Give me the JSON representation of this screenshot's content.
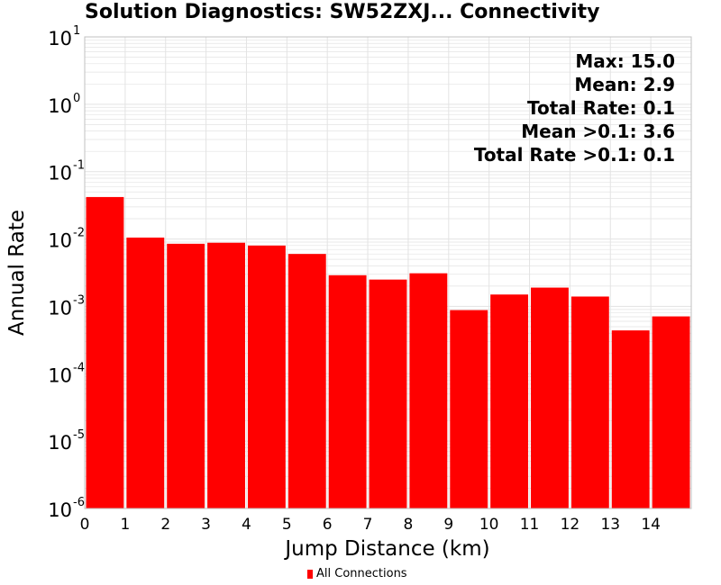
{
  "colors": {
    "bar": "#ff0000",
    "background": "#ffffff",
    "plot_border": "#c0c0c0",
    "grid": "#e3e3e3"
  },
  "chart_data": {
    "type": "bar",
    "title": "Solution Diagnostics: SW52ZXJ... Connectivity",
    "xlabel": "Jump Distance (km)",
    "ylabel": "Annual Rate",
    "y_scale": "log",
    "ylim": [
      1e-06,
      10
    ],
    "xlim": [
      0,
      15
    ],
    "x_tick_labels": [
      "0",
      "1",
      "2",
      "3",
      "4",
      "5",
      "6",
      "7",
      "8",
      "9",
      "10",
      "11",
      "12",
      "13",
      "14"
    ],
    "y_tick_labels": [
      {
        "base": "10",
        "exp": "1",
        "value": 10
      },
      {
        "base": "10",
        "exp": "0",
        "value": 1
      },
      {
        "base": "10",
        "exp": "-1",
        "value": 0.1
      },
      {
        "base": "10",
        "exp": "-2",
        "value": 0.01
      },
      {
        "base": "10",
        "exp": "-3",
        "value": 0.001
      },
      {
        "base": "10",
        "exp": "-4",
        "value": 0.0001
      },
      {
        "base": "10",
        "exp": "-5",
        "value": 1e-05
      },
      {
        "base": "10",
        "exp": "-6",
        "value": 1e-06
      }
    ],
    "grid": true,
    "legend_position": "bottom",
    "series": [
      {
        "name": "All Connections",
        "color": "#ff0000",
        "bins": [
          {
            "x0": 0,
            "x1": 1,
            "value": 0.042
          },
          {
            "x0": 1,
            "x1": 2,
            "value": 0.0105
          },
          {
            "x0": 2,
            "x1": 3,
            "value": 0.0085
          },
          {
            "x0": 3,
            "x1": 4,
            "value": 0.0088
          },
          {
            "x0": 4,
            "x1": 5,
            "value": 0.008
          },
          {
            "x0": 5,
            "x1": 6,
            "value": 0.006
          },
          {
            "x0": 6,
            "x1": 7,
            "value": 0.0029
          },
          {
            "x0": 7,
            "x1": 8,
            "value": 0.0025
          },
          {
            "x0": 8,
            "x1": 9,
            "value": 0.0031
          },
          {
            "x0": 9,
            "x1": 10,
            "value": 0.00088
          },
          {
            "x0": 10,
            "x1": 11,
            "value": 0.0015
          },
          {
            "x0": 11,
            "x1": 12,
            "value": 0.0019
          },
          {
            "x0": 12,
            "x1": 13,
            "value": 0.0014
          },
          {
            "x0": 13,
            "x1": 14,
            "value": 0.00044
          },
          {
            "x0": 14,
            "x1": 15,
            "value": 0.00071
          }
        ]
      }
    ],
    "annotations": [
      "Max: 15.0",
      "Mean: 2.9",
      "Total Rate: 0.1",
      "Mean >0.1: 3.6",
      "Total Rate >0.1: 0.1"
    ]
  }
}
